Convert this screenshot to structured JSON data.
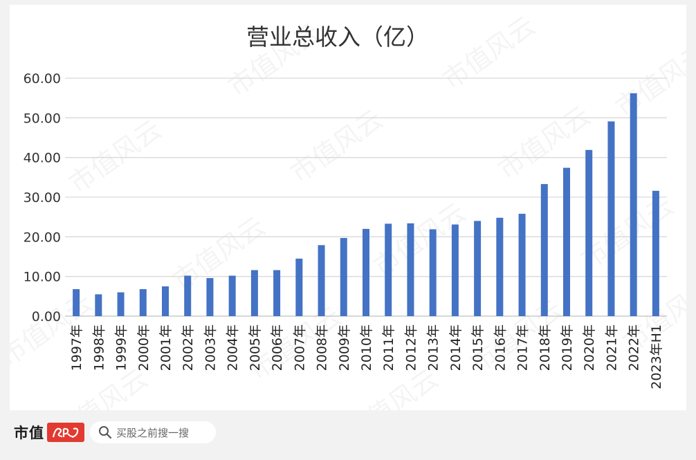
{
  "chart_data": {
    "type": "bar",
    "title": "营业总收入（亿）",
    "categories": [
      "1997年",
      "1998年",
      "1999年",
      "2000年",
      "2001年",
      "2002年",
      "2003年",
      "2004年",
      "2005年",
      "2006年",
      "2007年",
      "2008年",
      "2009年",
      "2010年",
      "2011年",
      "2012年",
      "2013年",
      "2014年",
      "2015年",
      "2016年",
      "2017年",
      "2018年",
      "2019年",
      "2020年",
      "2021年",
      "2022年",
      "2023年H1"
    ],
    "values": [
      6.8,
      5.5,
      6.0,
      6.8,
      7.5,
      10.2,
      9.6,
      10.2,
      11.6,
      11.6,
      14.5,
      17.9,
      19.7,
      22.0,
      23.3,
      23.4,
      21.9,
      23.1,
      24.0,
      24.8,
      25.8,
      33.3,
      37.4,
      41.9,
      49.1,
      56.2,
      31.6
    ],
    "y_ticks": [
      "0.00",
      "10.00",
      "20.00",
      "30.00",
      "40.00",
      "50.00",
      "60.00"
    ],
    "ylim": [
      0,
      60
    ],
    "xlabel": "",
    "ylabel": "",
    "grid": true,
    "legend": "none",
    "bar_color": "#4472c4"
  },
  "watermark": "市值风云",
  "footer": {
    "brand_name": "市值",
    "brand_seal_text": "风云",
    "search_placeholder": "买股之前搜一搜",
    "search_icon": "search-icon"
  }
}
